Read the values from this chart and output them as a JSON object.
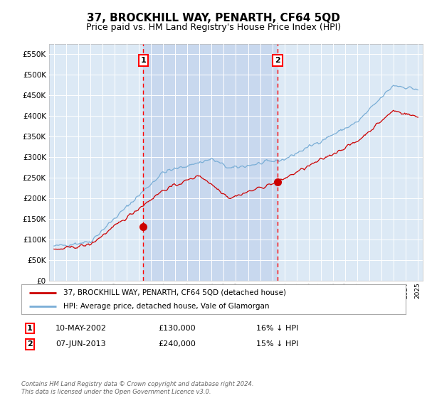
{
  "title": "37, BROCKHILL WAY, PENARTH, CF64 5QD",
  "subtitle": "Price paid vs. HM Land Registry's House Price Index (HPI)",
  "title_fontsize": 11,
  "subtitle_fontsize": 9,
  "ylabel_ticks": [
    "£0",
    "£50K",
    "£100K",
    "£150K",
    "£200K",
    "£250K",
    "£300K",
    "£350K",
    "£400K",
    "£450K",
    "£500K",
    "£550K"
  ],
  "ytick_values": [
    0,
    50000,
    100000,
    150000,
    200000,
    250000,
    300000,
    350000,
    400000,
    450000,
    500000,
    550000
  ],
  "ylim": [
    0,
    575000
  ],
  "xlim_start": 1994.6,
  "xlim_end": 2025.4,
  "bg_color": "#dce9f5",
  "highlight_color": "#c8d8ee",
  "red_line_color": "#cc0000",
  "blue_line_color": "#7aaed6",
  "transaction1_year": 2002.36,
  "transaction1_price": 130000,
  "transaction2_year": 2013.44,
  "transaction2_price": 240000,
  "legend_label1": "37, BROCKHILL WAY, PENARTH, CF64 5QD (detached house)",
  "legend_label2": "HPI: Average price, detached house, Vale of Glamorgan",
  "note1_date": "10-MAY-2002",
  "note1_price": "£130,000",
  "note1_hpi": "16% ↓ HPI",
  "note2_date": "07-JUN-2013",
  "note2_price": "£240,000",
  "note2_hpi": "15% ↓ HPI",
  "footer": "Contains HM Land Registry data © Crown copyright and database right 2024.\nThis data is licensed under the Open Government Licence v3.0."
}
